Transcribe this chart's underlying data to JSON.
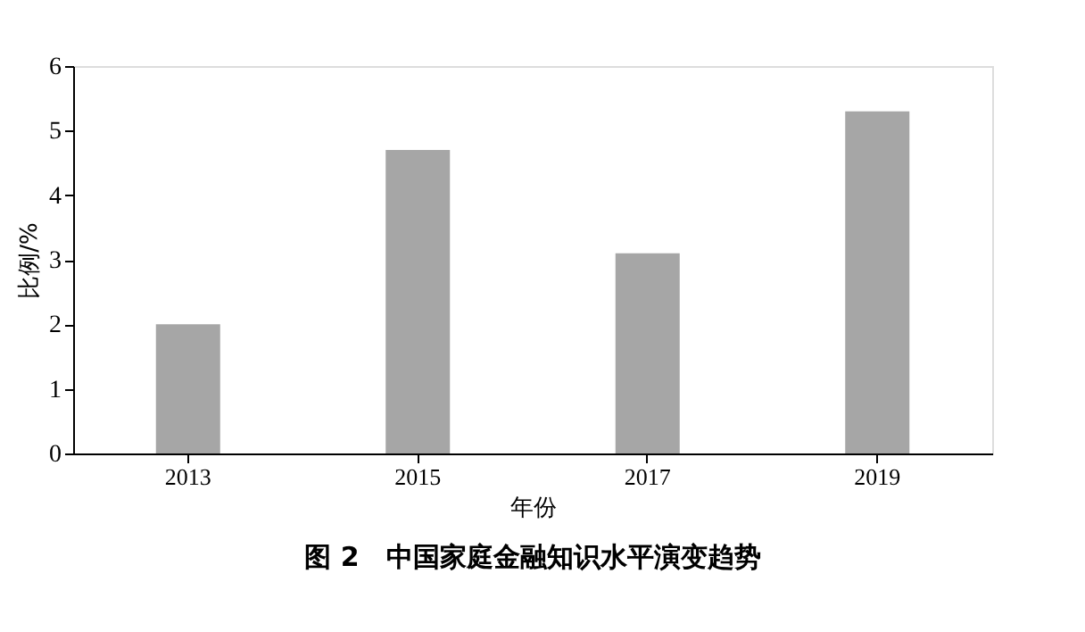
{
  "chart_data": {
    "type": "bar",
    "title": "图 2　中国家庭金融知识水平演变趋势",
    "xlabel": "年份",
    "ylabel": "比例/%",
    "categories": [
      "2013",
      "2015",
      "2017",
      "2019"
    ],
    "values": [
      2.0,
      4.7,
      3.1,
      5.3
    ],
    "color": "#a6a6a6",
    "ylim": [
      0,
      6
    ],
    "yticks": [
      0,
      1,
      2,
      3,
      4,
      5,
      6
    ],
    "grid": false
  }
}
